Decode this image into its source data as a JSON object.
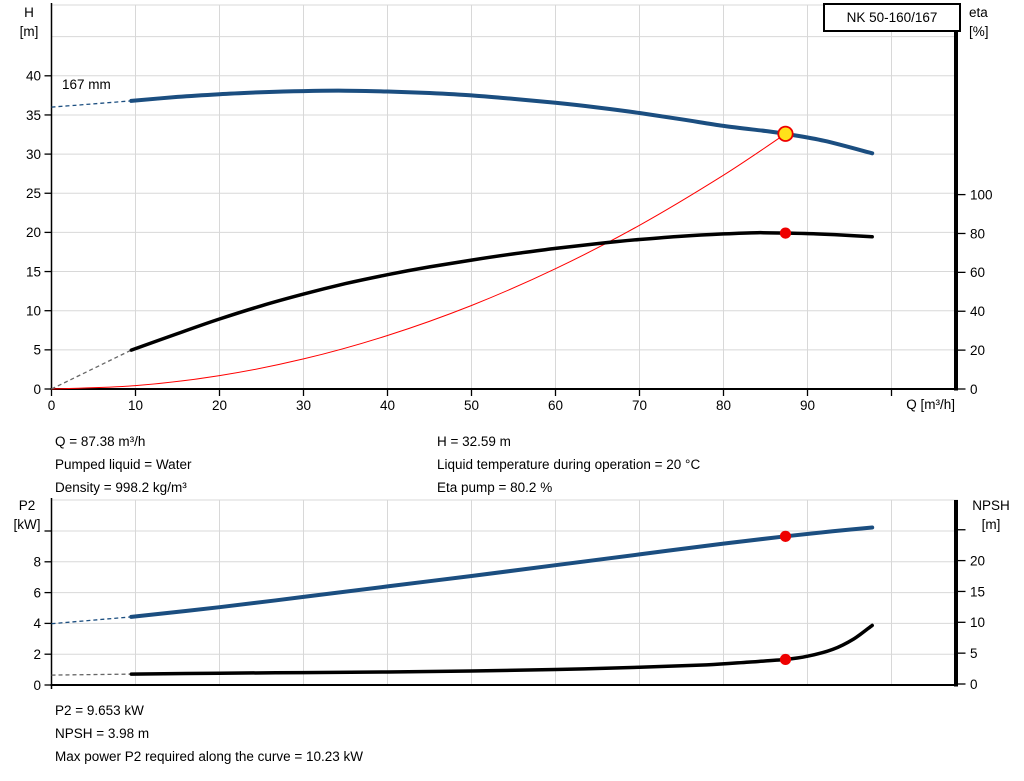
{
  "model_box": "NK 50-160/167",
  "top_chart_titles": {
    "left_line1": "H",
    "left_line2": "[m]",
    "right_line1": "eta",
    "right_line2": "[%]",
    "x_title": "Q [m³/h]",
    "impeller_label": "167 mm"
  },
  "bottom_chart_titles": {
    "left_line1": "P2",
    "left_line2": "[kW]",
    "right_line1": "NPSH",
    "right_line2": "[m]"
  },
  "info_top": {
    "left_lines": [
      "Q = 87.38 m³/h",
      "Pumped liquid = Water",
      "Density = 998.2 kg/m³"
    ],
    "right_lines": [
      "H = 32.59 m",
      "Liquid temperature during operation = 20 °C",
      "Eta pump = 80.2 %"
    ]
  },
  "info_bottom": {
    "lines": [
      "P2 = 9.653 kW",
      "NPSH = 3.98 m",
      "Max power P2 required along the curve = 10.23 kW"
    ]
  },
  "colors": {
    "curve_blue": "#1b4e80",
    "curve_black": "#000000",
    "curve_red": "#ff0000",
    "dash_gray": "#666666",
    "grid": "#d8d8d8",
    "marker_yellow": "#ffe11a",
    "marker_red": "#ee0000"
  },
  "chart_data": [
    {
      "type": "line",
      "title": "NK 50-160/167 head and efficiency vs flow",
      "xlabel": "Q [m³/h]",
      "x_axis": {
        "tick_labels": [
          0,
          10,
          20,
          30,
          40,
          50,
          60,
          70,
          80,
          90
        ],
        "tick_marks": [
          0,
          10,
          20,
          30,
          40,
          50,
          60,
          70,
          80,
          90,
          100
        ],
        "grid": [
          10,
          20,
          30,
          40,
          50,
          60,
          70,
          80,
          90,
          100
        ],
        "range": [
          0,
          107.9
        ]
      },
      "left_axis": {
        "label": "H [m]",
        "tick_labels": [
          0,
          5,
          10,
          15,
          20,
          25,
          30,
          35,
          40
        ],
        "tick_marks": [
          0,
          5,
          10,
          15,
          20,
          25,
          30,
          35,
          40
        ],
        "grid": [
          5,
          10,
          15,
          20,
          25,
          30,
          35,
          40,
          45
        ],
        "range": [
          0,
          49
        ]
      },
      "right_axis": {
        "label": "eta [%]",
        "tick_labels": [
          0,
          20,
          40,
          60,
          80,
          100
        ],
        "tick_marks": [
          0,
          20,
          40,
          60,
          80,
          100
        ],
        "range": [
          0,
          197
        ]
      },
      "series": [
        {
          "name": "system-curve",
          "axis": "left",
          "style": "thin-red",
          "points": [
            [
              0,
              0
            ],
            [
              10,
              0.43
            ],
            [
              20,
              1.71
            ],
            [
              30,
              3.84
            ],
            [
              40,
              6.83
            ],
            [
              50,
              10.67
            ],
            [
              60,
              15.36
            ],
            [
              70,
              20.91
            ],
            [
              80,
              27.31
            ],
            [
              87.38,
              32.59
            ]
          ]
        },
        {
          "name": "efficiency-curve",
          "axis": "right",
          "style": "thick-black",
          "dashed_lead": [
            [
              0,
              0
            ],
            [
              9.5,
              20
            ]
          ],
          "points": [
            [
              9.5,
              20
            ],
            [
              15,
              28.5
            ],
            [
              20,
              36
            ],
            [
              25,
              42.8
            ],
            [
              30,
              48.8
            ],
            [
              35,
              54.2
            ],
            [
              40,
              58.8
            ],
            [
              45,
              62.8
            ],
            [
              50,
              66.3
            ],
            [
              55,
              69.5
            ],
            [
              60,
              72.3
            ],
            [
              65,
              74.8
            ],
            [
              70,
              76.9
            ],
            [
              75,
              78.6
            ],
            [
              80,
              79.8
            ],
            [
              84,
              80.4
            ],
            [
              87.38,
              80.2
            ],
            [
              91,
              79.8
            ],
            [
              94,
              79.2
            ],
            [
              97.7,
              78.3
            ]
          ]
        },
        {
          "name": "head-curve-167mm",
          "axis": "left",
          "style": "thick-blue",
          "dashed_lead": [
            [
              0,
              36.0
            ],
            [
              3,
              36.25
            ],
            [
              6,
              36.5
            ],
            [
              9.5,
              36.8
            ]
          ],
          "points": [
            [
              9.5,
              36.8
            ],
            [
              15,
              37.3
            ],
            [
              20,
              37.65
            ],
            [
              25,
              37.9
            ],
            [
              30,
              38.05
            ],
            [
              35,
              38.1
            ],
            [
              40,
              38.0
            ],
            [
              45,
              37.8
            ],
            [
              50,
              37.5
            ],
            [
              55,
              37.05
            ],
            [
              60,
              36.55
            ],
            [
              65,
              35.95
            ],
            [
              70,
              35.25
            ],
            [
              75,
              34.45
            ],
            [
              80,
              33.6
            ],
            [
              85,
              32.95
            ],
            [
              87.38,
              32.59
            ],
            [
              92,
              31.7
            ],
            [
              97.7,
              30.1
            ]
          ]
        }
      ],
      "markers": [
        {
          "name": "duty-point-head",
          "x": 87.38,
          "value": 32.59,
          "axis": "left",
          "style": "yellow-ring"
        },
        {
          "name": "duty-point-eta",
          "x": 87.38,
          "value": 80.2,
          "axis": "right",
          "style": "red-dot"
        }
      ]
    },
    {
      "type": "line",
      "title": "Power P2 and NPSH vs flow",
      "x_axis": {
        "grid": [
          10,
          20,
          30,
          40,
          50,
          60,
          70,
          80,
          90,
          100
        ],
        "range": [
          0,
          107.9
        ]
      },
      "left_axis": {
        "label": "P2 [kW]",
        "tick_labels": [
          0,
          2,
          4,
          6,
          8
        ],
        "tick_marks": [
          0,
          2,
          4,
          6,
          8,
          10
        ],
        "grid": [
          2,
          4,
          6,
          8,
          10
        ],
        "range": [
          0,
          12
        ]
      },
      "right_axis": {
        "label": "NPSH [m]",
        "tick_labels": [
          0,
          5,
          10,
          15,
          20
        ],
        "tick_marks": [
          0,
          5,
          10,
          15,
          20,
          25
        ],
        "range": [
          0,
          30
        ]
      },
      "series": [
        {
          "name": "npsh-curve",
          "axis": "right",
          "style": "thick-black",
          "dashed_lead": [
            [
              0,
              1.45
            ],
            [
              9.5,
              1.6
            ]
          ],
          "points": [
            [
              9.5,
              1.6
            ],
            [
              20,
              1.75
            ],
            [
              30,
              1.85
            ],
            [
              40,
              1.95
            ],
            [
              50,
              2.1
            ],
            [
              60,
              2.35
            ],
            [
              70,
              2.7
            ],
            [
              78,
              3.1
            ],
            [
              83,
              3.55
            ],
            [
              87.38,
              3.98
            ],
            [
              90,
              4.5
            ],
            [
              93,
              5.6
            ],
            [
              95.5,
              7.3
            ],
            [
              97.7,
              9.5
            ]
          ]
        },
        {
          "name": "p2-curve",
          "axis": "left",
          "style": "thick-blue",
          "dashed_lead": [
            [
              0,
              3.98
            ],
            [
              9.5,
              4.42
            ]
          ],
          "points": [
            [
              9.5,
              4.42
            ],
            [
              20,
              5.05
            ],
            [
              30,
              5.72
            ],
            [
              40,
              6.4
            ],
            [
              50,
              7.08
            ],
            [
              60,
              7.78
            ],
            [
              70,
              8.48
            ],
            [
              80,
              9.18
            ],
            [
              87.38,
              9.653
            ],
            [
              93,
              9.98
            ],
            [
              97.7,
              10.23
            ]
          ]
        }
      ],
      "markers": [
        {
          "name": "duty-point-p2",
          "x": 87.38,
          "value": 9.653,
          "axis": "left",
          "style": "red-dot"
        },
        {
          "name": "duty-point-npsh",
          "x": 87.38,
          "value": 3.98,
          "axis": "right",
          "style": "red-dot"
        }
      ]
    }
  ]
}
